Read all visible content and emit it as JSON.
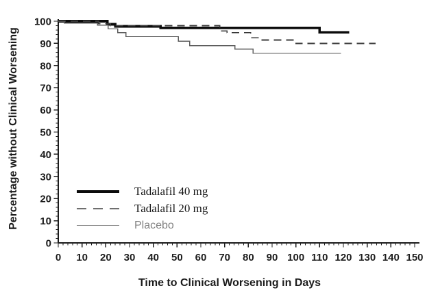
{
  "chart_data": {
    "type": "line",
    "subtype": "kaplan-meier-step",
    "title": "",
    "xlabel": "Time to Clinical Worsening in Days",
    "ylabel": "Percentage without Clinical Worsening",
    "xlim": [
      0,
      150
    ],
    "ylim": [
      0,
      100
    ],
    "x_ticks": [
      0,
      10,
      20,
      30,
      40,
      50,
      60,
      70,
      80,
      90,
      100,
      110,
      120,
      130,
      140,
      150
    ],
    "y_ticks": [
      0,
      10,
      20,
      30,
      40,
      50,
      60,
      70,
      80,
      90,
      100
    ],
    "x_minor_step": 2,
    "y_minor_step": 2,
    "grid": false,
    "legend_position": "lower-left-inside",
    "axis_color": "#1c1c1c",
    "series": [
      {
        "name": "Tadalafil 40 mg",
        "style": "thick-solid",
        "color": "#0b0b0b",
        "width": 3.6,
        "dash": "",
        "points": [
          [
            0,
            100
          ],
          [
            20.7,
            100
          ],
          [
            20.7,
            98.6
          ],
          [
            24,
            98.6
          ],
          [
            24,
            97.7
          ],
          [
            43,
            97.7
          ],
          [
            43,
            97.0
          ],
          [
            110,
            97.0
          ],
          [
            110,
            95.0
          ],
          [
            122.5,
            95.0
          ]
        ]
      },
      {
        "name": "Tadalafil 20 mg",
        "style": "dashed",
        "color": "#3a3a3a",
        "width": 1.7,
        "dash": "11,7",
        "points": [
          [
            0,
            100
          ],
          [
            17,
            100
          ],
          [
            17,
            98.9
          ],
          [
            22,
            98.9
          ],
          [
            22,
            98.0
          ],
          [
            68,
            98.0
          ],
          [
            68,
            95.6
          ],
          [
            71,
            95.6
          ],
          [
            71,
            94.8
          ],
          [
            81,
            94.8
          ],
          [
            81,
            92.5
          ],
          [
            85,
            92.5
          ],
          [
            85,
            91.5
          ],
          [
            100,
            91.5
          ],
          [
            100,
            90.0
          ],
          [
            133.5,
            90.0
          ]
        ]
      },
      {
        "name": "Placebo",
        "style": "thin-solid",
        "color": "#5f5f5f",
        "width": 1.3,
        "dash": "",
        "points": [
          [
            0,
            100
          ],
          [
            2.5,
            100
          ],
          [
            2.5,
            99.2
          ],
          [
            16.5,
            99.2
          ],
          [
            16.5,
            98.2
          ],
          [
            21,
            98.2
          ],
          [
            21,
            96.6
          ],
          [
            25,
            96.6
          ],
          [
            25,
            94.8
          ],
          [
            28.5,
            94.8
          ],
          [
            28.5,
            93.1
          ],
          [
            50.5,
            93.1
          ],
          [
            50.5,
            91.0
          ],
          [
            55.3,
            91.0
          ],
          [
            55.3,
            89.0
          ],
          [
            74.3,
            89.0
          ],
          [
            74.3,
            87.4
          ],
          [
            82,
            87.4
          ],
          [
            82,
            85.5
          ],
          [
            119,
            85.5
          ]
        ]
      }
    ]
  }
}
